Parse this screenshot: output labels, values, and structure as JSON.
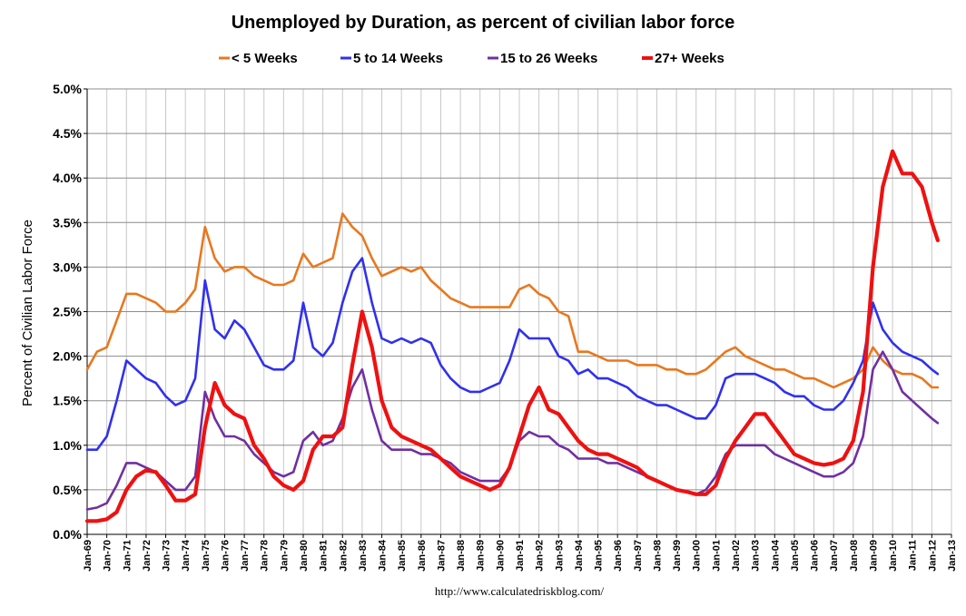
{
  "chart_data": {
    "type": "line",
    "title": "Unemployed by Duration, as percent of civilian labor force",
    "ylabel": "Percent of Civilian Labor Force",
    "xlabel": "",
    "ylim": [
      0,
      5.0
    ],
    "xlim": [
      1969.0,
      2013.0
    ],
    "y_ticks": [
      0.0,
      0.5,
      1.0,
      1.5,
      2.0,
      2.5,
      3.0,
      3.5,
      4.0,
      4.5,
      5.0
    ],
    "y_tick_labels": [
      "0.0%",
      "0.5%",
      "1.0%",
      "1.5%",
      "2.0%",
      "2.5%",
      "3.0%",
      "3.5%",
      "4.0%",
      "4.5%",
      "5.0%"
    ],
    "x_tick_labels": [
      "Jan-69",
      "Jan-70",
      "Jan-71",
      "Jan-72",
      "Jan-73",
      "Jan-74",
      "Jan-75",
      "Jan-76",
      "Jan-77",
      "Jan-78",
      "Jan-79",
      "Jan-80",
      "Jan-81",
      "Jan-82",
      "Jan-83",
      "Jan-84",
      "Jan-85",
      "Jan-86",
      "Jan-87",
      "Jan-88",
      "Jan-89",
      "Jan-90",
      "Jan-91",
      "Jan-92",
      "Jan-93",
      "Jan-94",
      "Jan-95",
      "Jan-96",
      "Jan-97",
      "Jan-98",
      "Jan-99",
      "Jan-00",
      "Jan-01",
      "Jan-02",
      "Jan-03",
      "Jan-04",
      "Jan-05",
      "Jan-06",
      "Jan-07",
      "Jan-08",
      "Jan-09",
      "Jan-10",
      "Jan-11",
      "Jan-12",
      "Jan-13"
    ],
    "grid": true,
    "legend_position": "top",
    "series": [
      {
        "name": "< 5 Weeks",
        "color": "#e8781e",
        "x": [
          1969.0,
          1969.5,
          1970.0,
          1970.5,
          1971.0,
          1971.5,
          1972.0,
          1972.5,
          1973.0,
          1973.5,
          1974.0,
          1974.5,
          1975.0,
          1975.5,
          1976.0,
          1976.5,
          1977.0,
          1977.5,
          1978.0,
          1978.5,
          1979.0,
          1979.5,
          1980.0,
          1980.5,
          1981.0,
          1981.5,
          1982.0,
          1982.5,
          1983.0,
          1983.5,
          1984.0,
          1984.5,
          1985.0,
          1985.5,
          1986.0,
          1986.5,
          1987.0,
          1987.5,
          1988.0,
          1988.5,
          1989.0,
          1989.5,
          1990.0,
          1990.5,
          1991.0,
          1991.5,
          1992.0,
          1992.5,
          1993.0,
          1993.5,
          1994.0,
          1994.5,
          1995.0,
          1995.5,
          1996.0,
          1996.5,
          1997.0,
          1997.5,
          1998.0,
          1998.5,
          1999.0,
          1999.5,
          2000.0,
          2000.5,
          2001.0,
          2001.5,
          2002.0,
          2002.5,
          2003.0,
          2003.5,
          2004.0,
          2004.5,
          2005.0,
          2005.5,
          2006.0,
          2006.5,
          2007.0,
          2007.5,
          2008.0,
          2008.5,
          2009.0,
          2009.5,
          2010.0,
          2010.5,
          2011.0,
          2011.5,
          2012.0,
          2012.3
        ],
        "y": [
          1.85,
          2.05,
          2.1,
          2.4,
          2.7,
          2.7,
          2.65,
          2.6,
          2.5,
          2.5,
          2.6,
          2.75,
          3.45,
          3.1,
          2.95,
          3.0,
          3.0,
          2.9,
          2.85,
          2.8,
          2.8,
          2.85,
          3.15,
          3.0,
          3.05,
          3.1,
          3.6,
          3.45,
          3.35,
          3.1,
          2.9,
          2.95,
          3.0,
          2.95,
          3.0,
          2.85,
          2.75,
          2.65,
          2.6,
          2.55,
          2.55,
          2.55,
          2.55,
          2.55,
          2.75,
          2.8,
          2.7,
          2.65,
          2.5,
          2.45,
          2.05,
          2.05,
          2.0,
          1.95,
          1.95,
          1.95,
          1.9,
          1.9,
          1.9,
          1.85,
          1.85,
          1.8,
          1.8,
          1.85,
          1.95,
          2.05,
          2.1,
          2.0,
          1.95,
          1.9,
          1.85,
          1.85,
          1.8,
          1.75,
          1.75,
          1.7,
          1.65,
          1.7,
          1.75,
          1.85,
          2.1,
          1.95,
          1.85,
          1.8,
          1.8,
          1.75,
          1.65,
          1.65
        ]
      },
      {
        "name": "5 to 14 Weeks",
        "color": "#3030f0",
        "x": [
          1969.0,
          1969.5,
          1970.0,
          1970.5,
          1971.0,
          1971.5,
          1972.0,
          1972.5,
          1973.0,
          1973.5,
          1974.0,
          1974.5,
          1975.0,
          1975.5,
          1976.0,
          1976.5,
          1977.0,
          1977.5,
          1978.0,
          1978.5,
          1979.0,
          1979.5,
          1980.0,
          1980.5,
          1981.0,
          1981.5,
          1982.0,
          1982.5,
          1983.0,
          1983.5,
          1984.0,
          1984.5,
          1985.0,
          1985.5,
          1986.0,
          1986.5,
          1987.0,
          1987.5,
          1988.0,
          1988.5,
          1989.0,
          1989.5,
          1990.0,
          1990.5,
          1991.0,
          1991.5,
          1992.0,
          1992.5,
          1993.0,
          1993.5,
          1994.0,
          1994.5,
          1995.0,
          1995.5,
          1996.0,
          1996.5,
          1997.0,
          1997.5,
          1998.0,
          1998.5,
          1999.0,
          1999.5,
          2000.0,
          2000.5,
          2001.0,
          2001.5,
          2002.0,
          2002.5,
          2003.0,
          2003.5,
          2004.0,
          2004.5,
          2005.0,
          2005.5,
          2006.0,
          2006.5,
          2007.0,
          2007.5,
          2008.0,
          2008.5,
          2009.0,
          2009.5,
          2010.0,
          2010.5,
          2011.0,
          2011.5,
          2012.0,
          2012.3
        ],
        "y": [
          0.95,
          0.95,
          1.1,
          1.5,
          1.95,
          1.85,
          1.75,
          1.7,
          1.55,
          1.45,
          1.5,
          1.75,
          2.85,
          2.3,
          2.2,
          2.4,
          2.3,
          2.1,
          1.9,
          1.85,
          1.85,
          1.95,
          2.6,
          2.1,
          2.0,
          2.15,
          2.6,
          2.95,
          3.1,
          2.6,
          2.2,
          2.15,
          2.2,
          2.15,
          2.2,
          2.15,
          1.9,
          1.75,
          1.65,
          1.6,
          1.6,
          1.65,
          1.7,
          1.95,
          2.3,
          2.2,
          2.2,
          2.2,
          2.0,
          1.95,
          1.8,
          1.85,
          1.75,
          1.75,
          1.7,
          1.65,
          1.55,
          1.5,
          1.45,
          1.45,
          1.4,
          1.35,
          1.3,
          1.3,
          1.45,
          1.75,
          1.8,
          1.8,
          1.8,
          1.75,
          1.7,
          1.6,
          1.55,
          1.55,
          1.45,
          1.4,
          1.4,
          1.5,
          1.7,
          1.95,
          2.6,
          2.3,
          2.15,
          2.05,
          2.0,
          1.95,
          1.85,
          1.8
        ]
      },
      {
        "name": "15 to 26 Weeks",
        "color": "#7030a0",
        "x": [
          1969.0,
          1969.5,
          1970.0,
          1970.5,
          1971.0,
          1971.5,
          1972.0,
          1972.5,
          1973.0,
          1973.5,
          1974.0,
          1974.5,
          1975.0,
          1975.5,
          1976.0,
          1976.5,
          1977.0,
          1977.5,
          1978.0,
          1978.5,
          1979.0,
          1979.5,
          1980.0,
          1980.5,
          1981.0,
          1981.5,
          1982.0,
          1982.5,
          1983.0,
          1983.5,
          1984.0,
          1984.5,
          1985.0,
          1985.5,
          1986.0,
          1986.5,
          1987.0,
          1987.5,
          1988.0,
          1988.5,
          1989.0,
          1989.5,
          1990.0,
          1990.5,
          1991.0,
          1991.5,
          1992.0,
          1992.5,
          1993.0,
          1993.5,
          1994.0,
          1994.5,
          1995.0,
          1995.5,
          1996.0,
          1996.5,
          1997.0,
          1997.5,
          1998.0,
          1998.5,
          1999.0,
          1999.5,
          2000.0,
          2000.5,
          2001.0,
          2001.5,
          2002.0,
          2002.5,
          2003.0,
          2003.5,
          2004.0,
          2004.5,
          2005.0,
          2005.5,
          2006.0,
          2006.5,
          2007.0,
          2007.5,
          2008.0,
          2008.5,
          2009.0,
          2009.5,
          2010.0,
          2010.5,
          2011.0,
          2011.5,
          2012.0,
          2012.3
        ],
        "y": [
          0.28,
          0.3,
          0.35,
          0.55,
          0.8,
          0.8,
          0.75,
          0.7,
          0.6,
          0.5,
          0.5,
          0.65,
          1.6,
          1.3,
          1.1,
          1.1,
          1.05,
          0.9,
          0.8,
          0.7,
          0.65,
          0.7,
          1.05,
          1.15,
          1.0,
          1.05,
          1.3,
          1.65,
          1.85,
          1.4,
          1.05,
          0.95,
          0.95,
          0.95,
          0.9,
          0.9,
          0.85,
          0.8,
          0.7,
          0.65,
          0.6,
          0.6,
          0.6,
          0.75,
          1.05,
          1.15,
          1.1,
          1.1,
          1.0,
          0.95,
          0.85,
          0.85,
          0.85,
          0.8,
          0.8,
          0.75,
          0.7,
          0.65,
          0.6,
          0.55,
          0.5,
          0.48,
          0.45,
          0.5,
          0.65,
          0.9,
          1.0,
          1.0,
          1.0,
          1.0,
          0.9,
          0.85,
          0.8,
          0.75,
          0.7,
          0.65,
          0.65,
          0.7,
          0.8,
          1.1,
          1.85,
          2.05,
          1.85,
          1.6,
          1.5,
          1.4,
          1.3,
          1.25
        ]
      },
      {
        "name": "27+ Weeks",
        "color": "#ee1111",
        "x": [
          1969.0,
          1969.5,
          1970.0,
          1970.5,
          1971.0,
          1971.5,
          1972.0,
          1972.5,
          1973.0,
          1973.5,
          1974.0,
          1974.5,
          1975.0,
          1975.5,
          1976.0,
          1976.5,
          1977.0,
          1977.5,
          1978.0,
          1978.5,
          1979.0,
          1979.5,
          1980.0,
          1980.5,
          1981.0,
          1981.5,
          1982.0,
          1982.5,
          1983.0,
          1983.5,
          1984.0,
          1984.5,
          1985.0,
          1985.5,
          1986.0,
          1986.5,
          1987.0,
          1987.5,
          1988.0,
          1988.5,
          1989.0,
          1989.5,
          1990.0,
          1990.5,
          1991.0,
          1991.5,
          1992.0,
          1992.5,
          1993.0,
          1993.5,
          1994.0,
          1994.5,
          1995.0,
          1995.5,
          1996.0,
          1996.5,
          1997.0,
          1997.5,
          1998.0,
          1998.5,
          1999.0,
          1999.5,
          2000.0,
          2000.5,
          2001.0,
          2001.5,
          2002.0,
          2002.5,
          2003.0,
          2003.5,
          2004.0,
          2004.5,
          2005.0,
          2005.5,
          2006.0,
          2006.5,
          2007.0,
          2007.5,
          2008.0,
          2008.5,
          2009.0,
          2009.5,
          2010.0,
          2010.5,
          2011.0,
          2011.5,
          2012.0,
          2012.3
        ],
        "y": [
          0.15,
          0.15,
          0.17,
          0.25,
          0.5,
          0.65,
          0.72,
          0.7,
          0.55,
          0.38,
          0.38,
          0.45,
          1.2,
          1.7,
          1.45,
          1.35,
          1.3,
          1.0,
          0.85,
          0.65,
          0.55,
          0.5,
          0.6,
          0.95,
          1.1,
          1.1,
          1.2,
          1.9,
          2.5,
          2.1,
          1.5,
          1.2,
          1.1,
          1.05,
          1.0,
          0.95,
          0.85,
          0.75,
          0.65,
          0.6,
          0.55,
          0.5,
          0.55,
          0.75,
          1.1,
          1.45,
          1.65,
          1.4,
          1.35,
          1.2,
          1.05,
          0.95,
          0.9,
          0.9,
          0.85,
          0.8,
          0.75,
          0.65,
          0.6,
          0.55,
          0.5,
          0.48,
          0.45,
          0.45,
          0.55,
          0.85,
          1.05,
          1.2,
          1.35,
          1.35,
          1.2,
          1.05,
          0.9,
          0.85,
          0.8,
          0.78,
          0.8,
          0.85,
          1.05,
          1.6,
          3.0,
          3.9,
          4.3,
          4.05,
          4.05,
          3.9,
          3.5,
          3.3
        ]
      }
    ]
  },
  "source_url": "http://www.calculatedriskblog.com/"
}
